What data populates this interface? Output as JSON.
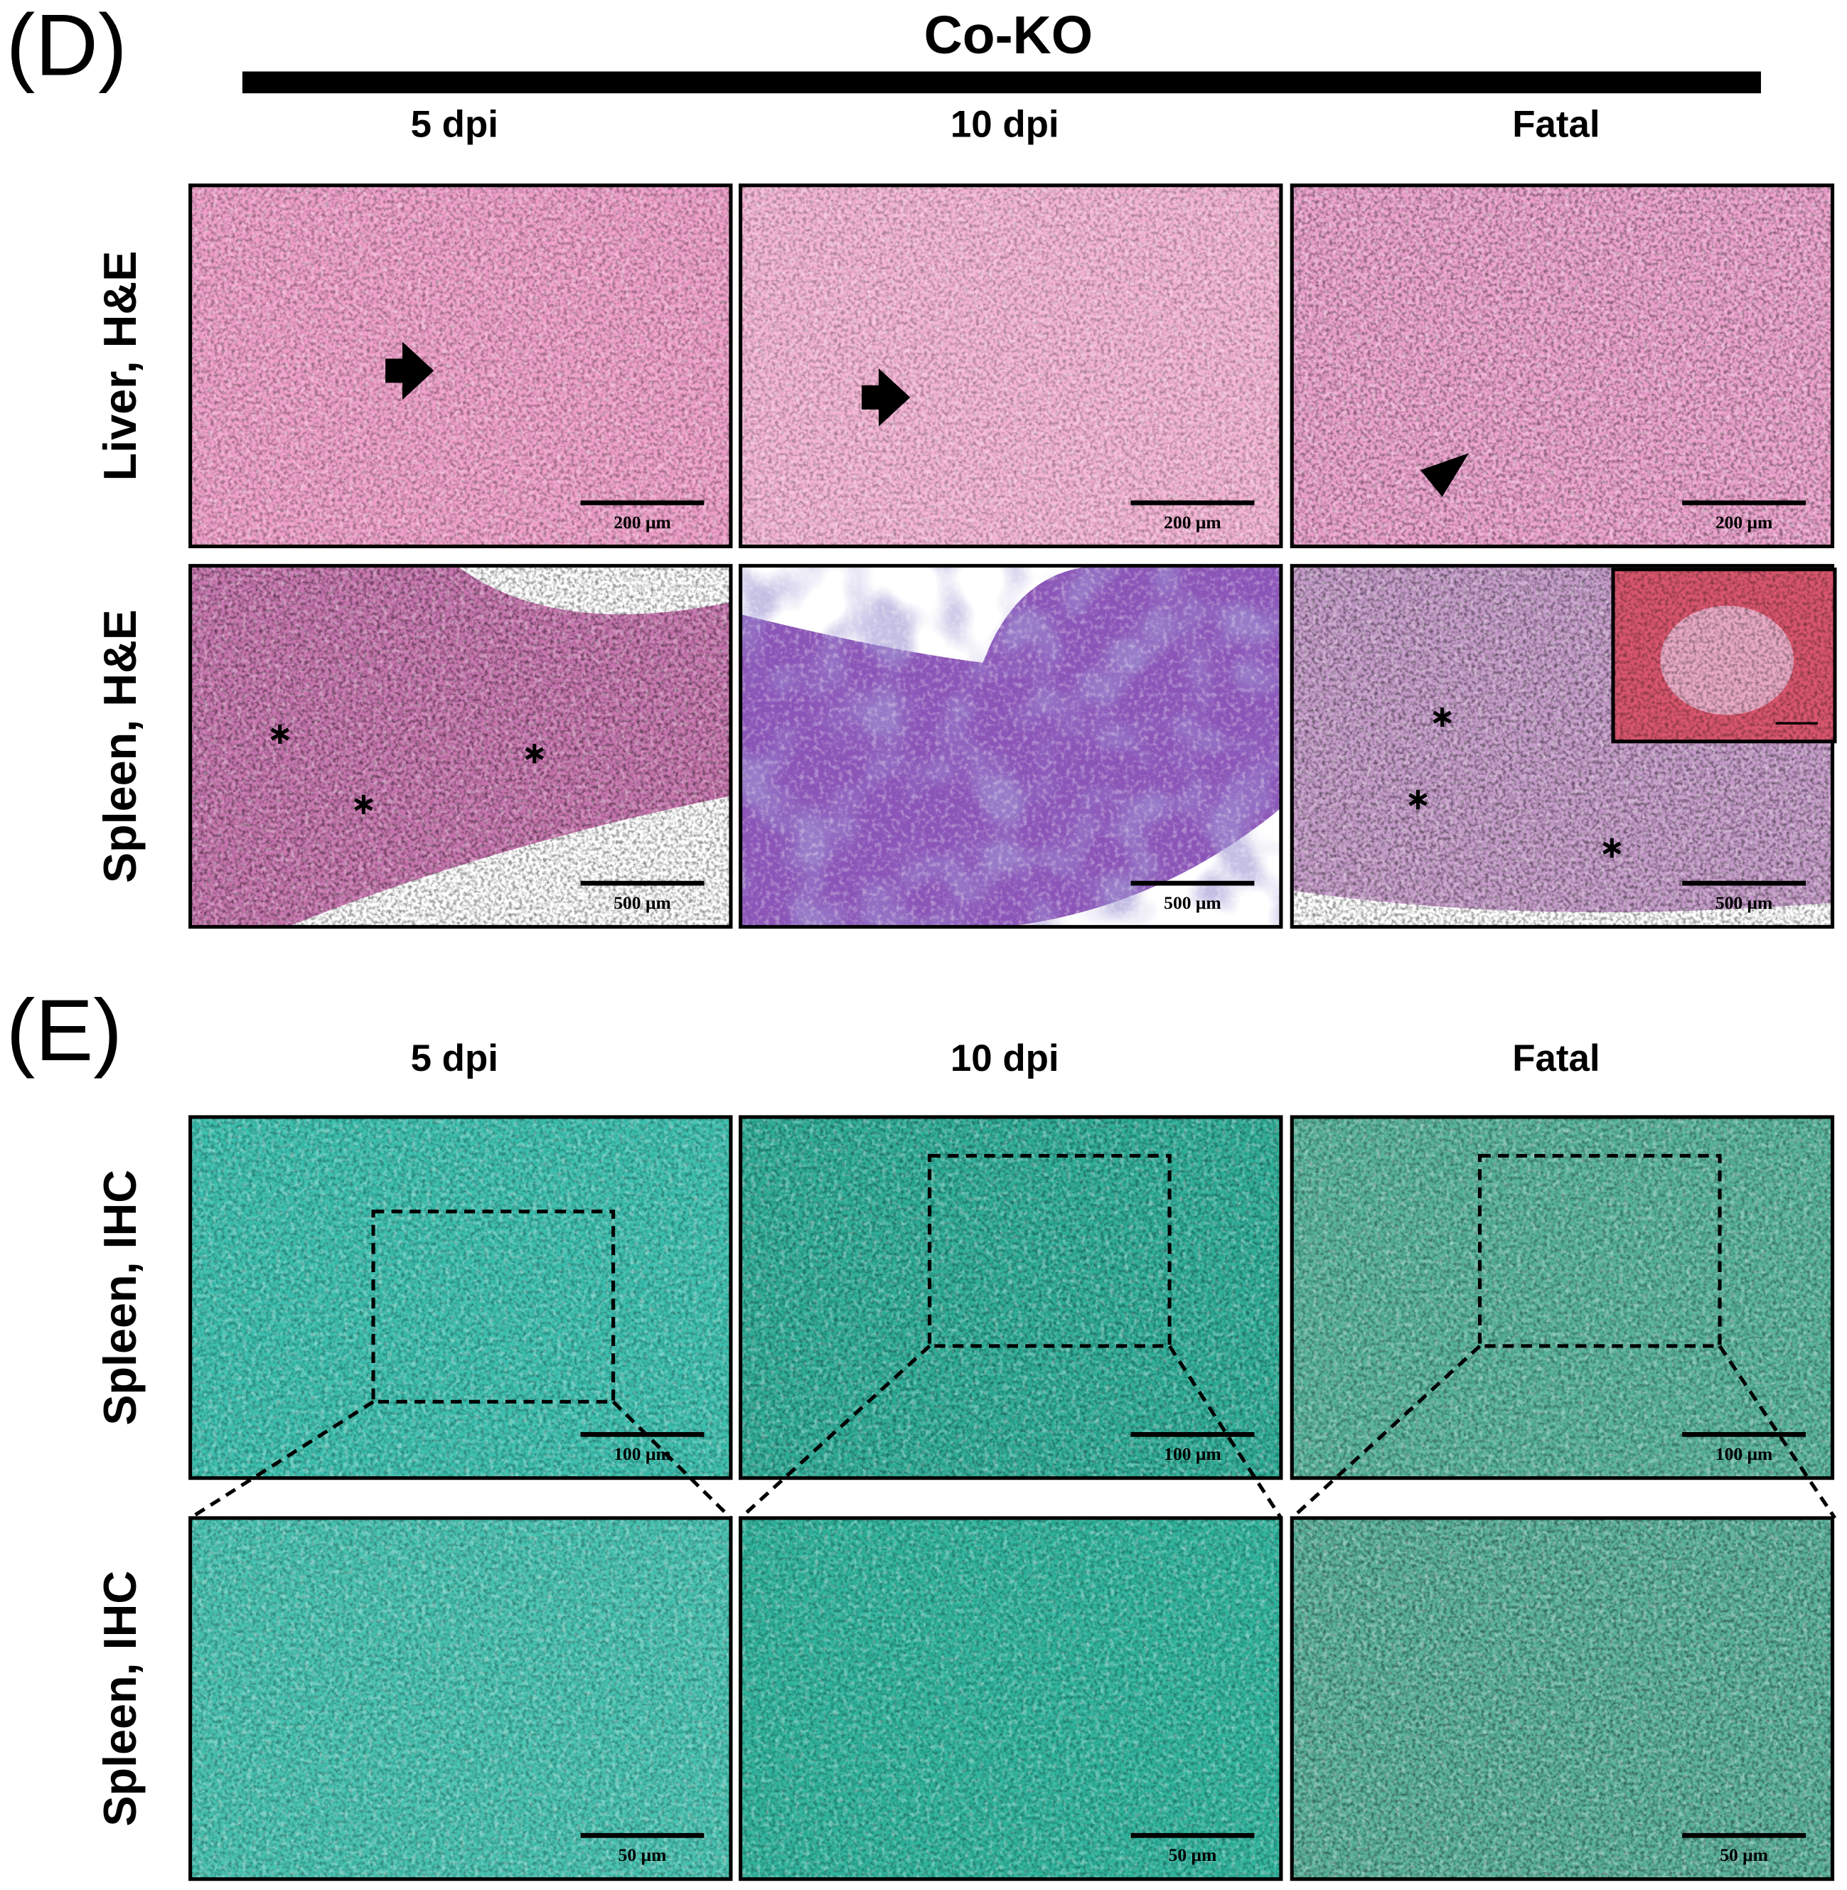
{
  "panels": [
    {
      "label": "(D)",
      "header": "Co-KO",
      "columns": [
        "5 dpi",
        "10 dpi",
        "Fatal"
      ],
      "rows": [
        {
          "label": "Liver, H&E",
          "scale_bars": [
            "200 μm",
            "200 μm",
            "200 μm"
          ]
        },
        {
          "label": "Spleen, H&E",
          "scale_bars": [
            "500 μm",
            "500 μm",
            "500 μm"
          ]
        }
      ]
    },
    {
      "label": "(E)",
      "columns": [
        "5 dpi",
        "10 dpi",
        "Fatal"
      ],
      "rows": [
        {
          "label": "Spleen, IHC",
          "scale_bars": [
            "100 μm",
            "100 μm",
            "100 μm"
          ]
        },
        {
          "label": "Spleen, IHC",
          "scale_bars": [
            "50 μm",
            "50 μm",
            "50 μm"
          ]
        }
      ]
    }
  ]
}
